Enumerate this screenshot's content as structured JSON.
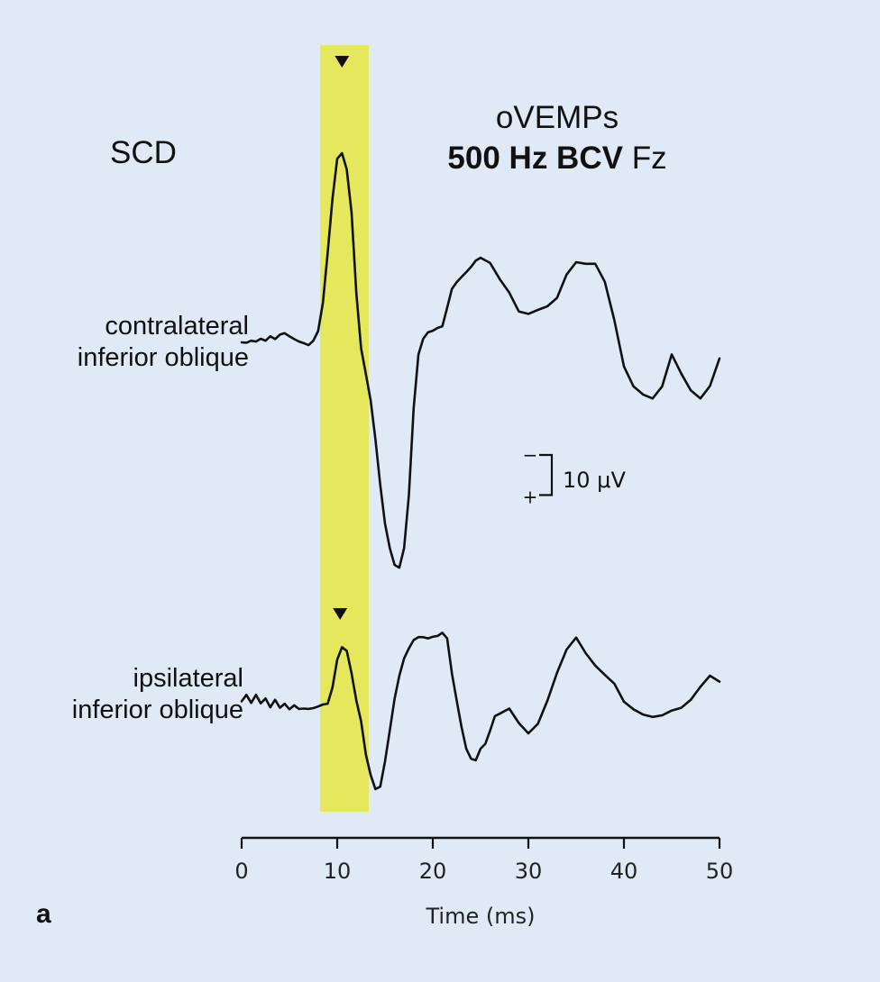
{
  "chart_data": {
    "type": "line",
    "title": "oVEMPs",
    "subtitle": {
      "bold": "500 Hz BCV",
      "normal": "Fz"
    },
    "condition_label": "SCD",
    "panel_label": "a",
    "xlabel": "Time (ms)",
    "ylabel": "",
    "xlim": [
      0,
      50
    ],
    "x_ticks": [
      "0",
      "10",
      "20",
      "30",
      "40",
      "50"
    ],
    "highlight_band_ms": [
      8.2,
      13.3
    ],
    "highlight_color": "#e5e85d",
    "background_color": "#dfeaf6",
    "grid": false,
    "scale_bar": {
      "label": "10 μV",
      "minus": "−",
      "plus": "+",
      "value_uV": 10
    },
    "series": [
      {
        "name": "contralateral inferior oblique",
        "label_lines": [
          "contralateral",
          "inferior oblique"
        ],
        "peak_marker_ms": 10.5,
        "unit": "μV",
        "x": [
          0,
          0.5,
          1,
          1.5,
          2,
          2.5,
          3,
          3.5,
          4,
          4.5,
          5,
          5.5,
          6,
          6.5,
          7,
          7.5,
          8,
          8.5,
          9,
          9.5,
          10,
          10.5,
          11,
          11.5,
          12,
          12.5,
          13,
          13.5,
          14,
          14.5,
          15,
          15.5,
          16,
          16.5,
          17,
          17.5,
          18,
          18.5,
          19,
          19.5,
          20,
          20.5,
          21,
          21.5,
          22,
          22.5,
          23,
          23.5,
          24,
          24.5,
          25,
          26,
          27,
          28,
          29,
          30,
          31,
          32,
          33,
          34,
          35,
          36,
          37,
          38,
          39,
          40,
          41,
          42,
          43,
          44,
          45,
          46,
          47,
          48,
          49,
          50
        ],
        "y": [
          0,
          -0.1,
          0.4,
          0.2,
          0.9,
          0.4,
          1.5,
          0.8,
          1.9,
          2.3,
          1.5,
          0.8,
          0.2,
          -0.2,
          -0.7,
          0.4,
          2.8,
          9.8,
          22.3,
          35.7,
          45.8,
          47.2,
          43.1,
          32.4,
          12.3,
          -1.5,
          -7.9,
          -14.5,
          -24.2,
          -35.5,
          -45.2,
          -51.3,
          -55.5,
          -56.2,
          -51.3,
          -38.1,
          -16.4,
          -3.0,
          0.9,
          2.5,
          2.9,
          3.6,
          4.0,
          8.6,
          13.3,
          15.0,
          16.3,
          17.5,
          18.8,
          20.4,
          21.1,
          19.8,
          15.8,
          12.4,
          7.7,
          7.1,
          8.1,
          9.0,
          11.1,
          16.9,
          20.0,
          19.6,
          19.6,
          15.1,
          5.5,
          -6.0,
          -11.0,
          -13.0,
          -14.0,
          -11.0,
          -3.0,
          -7.8,
          -12.0,
          -14.0,
          -10.9,
          -4.0
        ]
      },
      {
        "name": "ipsilateral inferior oblique",
        "label_lines": [
          "ipsilateral",
          "inferior oblique"
        ],
        "peak_marker_ms": 10.3,
        "unit": "μV",
        "x": [
          0,
          0.5,
          1,
          1.5,
          2,
          2.5,
          3,
          3.5,
          4,
          4.5,
          5,
          5.5,
          6,
          6.5,
          7,
          7.5,
          8,
          8.5,
          9,
          9.5,
          10,
          10.5,
          11,
          11.5,
          12,
          12.5,
          13,
          13.5,
          14,
          14.5,
          15,
          15.5,
          16,
          16.5,
          17,
          17.5,
          18,
          18.5,
          19,
          19.5,
          20,
          20.5,
          21,
          21.5,
          22,
          22.5,
          23,
          23.5,
          24,
          24.5,
          25,
          25.5,
          26,
          26.5,
          27,
          28,
          29,
          30,
          31,
          32,
          33,
          34,
          35,
          36,
          37,
          38,
          39,
          40,
          41,
          42,
          43,
          44,
          45,
          46,
          47,
          48,
          49,
          50
        ],
        "y": [
          0.8,
          2.4,
          0.4,
          2.4,
          0.3,
          1.5,
          -0.7,
          1.2,
          -0.8,
          0.2,
          -1.2,
          -0.2,
          -1.1,
          -1.0,
          -1.1,
          -0.9,
          -0.5,
          0,
          0.2,
          4.2,
          11.2,
          14.3,
          13.4,
          7.8,
          1.0,
          -4.2,
          -12.5,
          -17.6,
          -21.1,
          -20.5,
          -14.2,
          -6.5,
          1.4,
          7.2,
          11.5,
          14.0,
          16.1,
          16.8,
          16.8,
          16.5,
          16.9,
          17.1,
          17.9,
          16.5,
          7.8,
          1.0,
          -5.5,
          -11.0,
          -13.5,
          -13.9,
          -11.0,
          -9.8,
          -6.5,
          -2.9,
          -2.3,
          -1.0,
          -4.6,
          -7.2,
          -4.8,
          1.0,
          7.9,
          13.7,
          16.7,
          12.8,
          9.7,
          7.4,
          5.2,
          0.7,
          -1.2,
          -2.5,
          -3.1,
          -2.7,
          -1.5,
          -0.8,
          1.2,
          4.4,
          7.2,
          5.7
        ]
      }
    ]
  }
}
